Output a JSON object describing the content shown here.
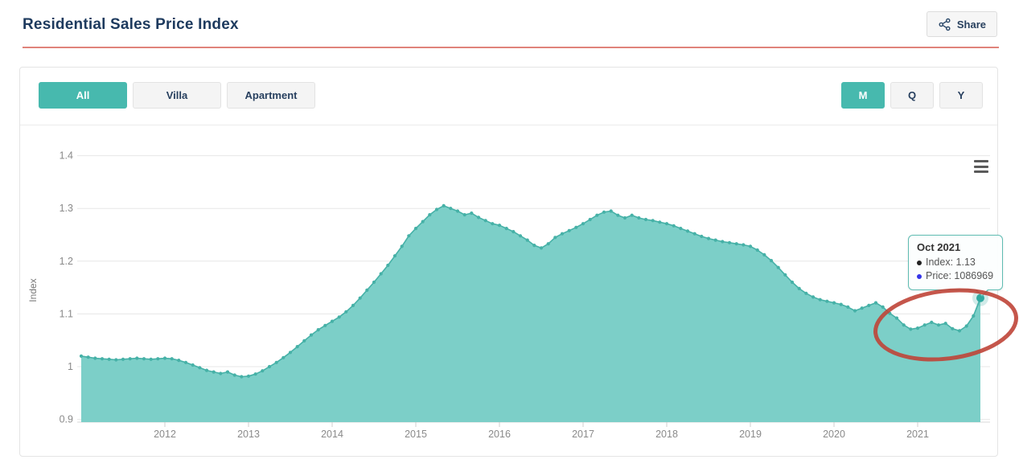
{
  "page": {
    "title": "Residential Sales Price Index"
  },
  "header": {
    "share_label": "Share"
  },
  "toolbar": {
    "property_filters": [
      {
        "label": "All",
        "selected": true
      },
      {
        "label": "Villa",
        "selected": false
      },
      {
        "label": "Apartment",
        "selected": false
      }
    ],
    "period_filters": [
      {
        "label": "M",
        "selected": true
      },
      {
        "label": "Q",
        "selected": false
      },
      {
        "label": "Y",
        "selected": false
      }
    ]
  },
  "tooltip": {
    "title": "Oct 2021",
    "items": [
      {
        "label": "Index",
        "value": "1.13",
        "bullet": "#222222"
      },
      {
        "label": "Price",
        "value": "1086969",
        "bullet": "#3535e8"
      }
    ]
  },
  "colors": {
    "accent_teal": "#47b9ae",
    "area_fill": "#7ccfc8",
    "line": "#46b1a7",
    "last_marker": "#2fa9a0",
    "title_navy": "#1d3a5e",
    "header_underline": "#e0837b",
    "annotation_red": "#bf4437",
    "tooltip_border": "#5fbcb2",
    "grid": "#e7e7e7",
    "axis_text": "#8a8a8a"
  },
  "chart_data": {
    "type": "area",
    "title": "Residential Sales Price Index",
    "xlabel": "",
    "ylabel": "Index",
    "x_start": "2011-01",
    "x_interval": "month",
    "x_end": "2021-10",
    "x_tick_labels": [
      "2012",
      "2013",
      "2014",
      "2015",
      "2016",
      "2017",
      "2018",
      "2019",
      "2020",
      "2021"
    ],
    "y_ticks": [
      0.9,
      1,
      1.1,
      1.2,
      1.3,
      1.4
    ],
    "ylim": [
      0.9,
      1.4
    ],
    "grid": "horizontal",
    "legend": "none",
    "series": [
      {
        "name": "Index",
        "values": [
          1.02,
          1.018,
          1.016,
          1.015,
          1.014,
          1.013,
          1.014,
          1.015,
          1.016,
          1.015,
          1.014,
          1.015,
          1.016,
          1.015,
          1.012,
          1.008,
          1.003,
          0.998,
          0.993,
          0.99,
          0.987,
          0.99,
          0.984,
          0.981,
          0.982,
          0.986,
          0.992,
          1.0,
          1.008,
          1.017,
          1.027,
          1.038,
          1.049,
          1.06,
          1.07,
          1.078,
          1.086,
          1.094,
          1.104,
          1.116,
          1.13,
          1.145,
          1.16,
          1.176,
          1.192,
          1.21,
          1.228,
          1.248,
          1.262,
          1.275,
          1.288,
          1.298,
          1.305,
          1.3,
          1.295,
          1.288,
          1.291,
          1.283,
          1.277,
          1.271,
          1.268,
          1.262,
          1.256,
          1.248,
          1.24,
          1.23,
          1.225,
          1.233,
          1.245,
          1.252,
          1.258,
          1.264,
          1.271,
          1.279,
          1.287,
          1.293,
          1.295,
          1.287,
          1.282,
          1.287,
          1.282,
          1.279,
          1.277,
          1.274,
          1.271,
          1.267,
          1.262,
          1.257,
          1.252,
          1.247,
          1.243,
          1.24,
          1.237,
          1.235,
          1.233,
          1.231,
          1.228,
          1.221,
          1.212,
          1.201,
          1.188,
          1.174,
          1.16,
          1.148,
          1.139,
          1.132,
          1.127,
          1.124,
          1.121,
          1.118,
          1.113,
          1.106,
          1.111,
          1.116,
          1.121,
          1.113,
          1.101,
          1.092,
          1.079,
          1.071,
          1.073,
          1.079,
          1.084,
          1.079,
          1.082,
          1.072,
          1.068,
          1.077,
          1.096,
          1.13
        ]
      }
    ],
    "last_point": {
      "label": "Oct 2021",
      "index": 1.13,
      "price": 1086969
    },
    "annotation": {
      "type": "hand-drawn-ellipse",
      "color": "#bf4437",
      "region": "late-2020 to 2021 dip and final upturn circled in red"
    }
  }
}
